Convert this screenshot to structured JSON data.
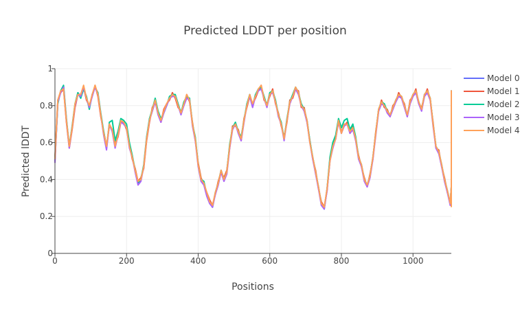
{
  "chart_data": {
    "type": "line",
    "title": "Predicted LDDT per position",
    "xlabel": "Positions",
    "ylabel": "Predicted lDDT",
    "xlim": [
      0,
      1107
    ],
    "ylim": [
      0,
      1
    ],
    "x_ticks": [
      0,
      200,
      400,
      600,
      800,
      1000
    ],
    "y_ticks": [
      0,
      0.2,
      0.4,
      0.6,
      0.8,
      1
    ],
    "x_tick_labels": [
      "0",
      "200",
      "400",
      "600",
      "800",
      "1000"
    ],
    "y_tick_labels": [
      "0",
      "0.2",
      "0.4",
      "0.6",
      "0.8",
      "1"
    ],
    "grid": true,
    "legend_position": "top-right",
    "x_step": 8,
    "series": [
      {
        "name": "Model 0",
        "color": "#636efa",
        "values": [
          0.5,
          0.82,
          0.88,
          0.9,
          0.72,
          0.58,
          0.68,
          0.8,
          0.87,
          0.85,
          0.9,
          0.84,
          0.79,
          0.86,
          0.9,
          0.86,
          0.75,
          0.65,
          0.57,
          0.7,
          0.66,
          0.58,
          0.64,
          0.72,
          0.7,
          0.68,
          0.58,
          0.52,
          0.45,
          0.38,
          0.4,
          0.47,
          0.62,
          0.72,
          0.78,
          0.83,
          0.76,
          0.72,
          0.77,
          0.8,
          0.84,
          0.86,
          0.85,
          0.8,
          0.76,
          0.81,
          0.85,
          0.83,
          0.7,
          0.62,
          0.48,
          0.4,
          0.38,
          0.32,
          0.28,
          0.25,
          0.33,
          0.38,
          0.45,
          0.4,
          0.44,
          0.58,
          0.68,
          0.7,
          0.66,
          0.62,
          0.72,
          0.8,
          0.86,
          0.8,
          0.85,
          0.89,
          0.9,
          0.84,
          0.8,
          0.86,
          0.88,
          0.82,
          0.75,
          0.7,
          0.62,
          0.72,
          0.82,
          0.85,
          0.9,
          0.87,
          0.8,
          0.78,
          0.72,
          0.6,
          0.52,
          0.44,
          0.36,
          0.27,
          0.24,
          0.35,
          0.5,
          0.58,
          0.62,
          0.72,
          0.65,
          0.7,
          0.7,
          0.66,
          0.68,
          0.62,
          0.52,
          0.48,
          0.4,
          0.37,
          0.42,
          0.52,
          0.65,
          0.78,
          0.82,
          0.8,
          0.77,
          0.75,
          0.79,
          0.83,
          0.86,
          0.85,
          0.8,
          0.75,
          0.82,
          0.86,
          0.88,
          0.82,
          0.78,
          0.86,
          0.88,
          0.84,
          0.7,
          0.58,
          0.55,
          0.48,
          0.4,
          0.34,
          0.27,
          0.36,
          0.45,
          0.58,
          0.6,
          0.68,
          0.66,
          0.62,
          0.6,
          0.55,
          0.5,
          0.44,
          0.4,
          0.36,
          0.38,
          0.45,
          0.58,
          0.72,
          0.8,
          0.84,
          0.78,
          0.72,
          0.82,
          0.86,
          0.8,
          0.75,
          0.84,
          0.88,
          0.86,
          0.8,
          0.84,
          0.87,
          0.83,
          0.72,
          0.64,
          0.58,
          0.5,
          0.42,
          0.38,
          0.27
        ]
      },
      {
        "name": "Model 1",
        "color": "#ef553b",
        "values": [
          0.52,
          0.83,
          0.87,
          0.89,
          0.71,
          0.57,
          0.67,
          0.79,
          0.86,
          0.86,
          0.9,
          0.83,
          0.8,
          0.85,
          0.91,
          0.85,
          0.74,
          0.66,
          0.58,
          0.69,
          0.67,
          0.59,
          0.63,
          0.71,
          0.71,
          0.67,
          0.59,
          0.51,
          0.46,
          0.39,
          0.41,
          0.46,
          0.61,
          0.71,
          0.79,
          0.82,
          0.77,
          0.71,
          0.78,
          0.81,
          0.83,
          0.87,
          0.84,
          0.79,
          0.77,
          0.8,
          0.86,
          0.82,
          0.71,
          0.61,
          0.49,
          0.41,
          0.37,
          0.33,
          0.29,
          0.26,
          0.32,
          0.39,
          0.44,
          0.41,
          0.45,
          0.57,
          0.69,
          0.69,
          0.67,
          0.61,
          0.73,
          0.79,
          0.85,
          0.81,
          0.84,
          0.88,
          0.91,
          0.83,
          0.81,
          0.85,
          0.89,
          0.81,
          0.76,
          0.69,
          0.63,
          0.71,
          0.83,
          0.84,
          0.89,
          0.88,
          0.79,
          0.79,
          0.71,
          0.61,
          0.51,
          0.45,
          0.35,
          0.28,
          0.25,
          0.34,
          0.51,
          0.57,
          0.63,
          0.71,
          0.66,
          0.69,
          0.71,
          0.65,
          0.69,
          0.61,
          0.53,
          0.47,
          0.41,
          0.36,
          0.43,
          0.51,
          0.66,
          0.77,
          0.83,
          0.79,
          0.78,
          0.74,
          0.8,
          0.82,
          0.87,
          0.84,
          0.81,
          0.74,
          0.83,
          0.85,
          0.89,
          0.81,
          0.79,
          0.85,
          0.89,
          0.83,
          0.71,
          0.57,
          0.56,
          0.47,
          0.41,
          0.33,
          0.28,
          0.35,
          0.46,
          0.57,
          0.61,
          0.67,
          0.67,
          0.61,
          0.61,
          0.54,
          0.51,
          0.43,
          0.41,
          0.35,
          0.39,
          0.44,
          0.59,
          0.71,
          0.81,
          0.83,
          0.79,
          0.71,
          0.83,
          0.85,
          0.81,
          0.74,
          0.85,
          0.87,
          0.87,
          0.79,
          0.85,
          0.86,
          0.84,
          0.71,
          0.65,
          0.57,
          0.51,
          0.41,
          0.39,
          0.26
        ]
      },
      {
        "name": "Model 2",
        "color": "#00cc96",
        "values": [
          0.51,
          0.81,
          0.88,
          0.91,
          0.73,
          0.58,
          0.69,
          0.81,
          0.87,
          0.84,
          0.89,
          0.85,
          0.78,
          0.86,
          0.9,
          0.87,
          0.76,
          0.66,
          0.57,
          0.71,
          0.72,
          0.61,
          0.66,
          0.73,
          0.72,
          0.7,
          0.6,
          0.53,
          0.45,
          0.38,
          0.4,
          0.48,
          0.63,
          0.73,
          0.78,
          0.84,
          0.77,
          0.73,
          0.76,
          0.8,
          0.85,
          0.86,
          0.86,
          0.81,
          0.76,
          0.82,
          0.85,
          0.84,
          0.7,
          0.63,
          0.48,
          0.4,
          0.39,
          0.32,
          0.28,
          0.25,
          0.33,
          0.38,
          0.45,
          0.4,
          0.44,
          0.59,
          0.68,
          0.71,
          0.66,
          0.63,
          0.72,
          0.81,
          0.86,
          0.8,
          0.86,
          0.89,
          0.9,
          0.85,
          0.8,
          0.87,
          0.88,
          0.83,
          0.75,
          0.71,
          0.62,
          0.73,
          0.82,
          0.86,
          0.9,
          0.87,
          0.81,
          0.78,
          0.72,
          0.61,
          0.52,
          0.44,
          0.36,
          0.27,
          0.24,
          0.35,
          0.52,
          0.6,
          0.64,
          0.73,
          0.68,
          0.72,
          0.73,
          0.67,
          0.7,
          0.63,
          0.52,
          0.48,
          0.4,
          0.37,
          0.42,
          0.52,
          0.65,
          0.78,
          0.82,
          0.81,
          0.77,
          0.75,
          0.79,
          0.83,
          0.86,
          0.85,
          0.8,
          0.75,
          0.82,
          0.86,
          0.88,
          0.82,
          0.78,
          0.86,
          0.88,
          0.84,
          0.7,
          0.58,
          0.55,
          0.48,
          0.4,
          0.34,
          0.27,
          0.36,
          0.45,
          0.59,
          0.62,
          0.7,
          0.67,
          0.64,
          0.61,
          0.55,
          0.5,
          0.44,
          0.4,
          0.36,
          0.38,
          0.45,
          0.58,
          0.72,
          0.8,
          0.84,
          0.78,
          0.72,
          0.82,
          0.86,
          0.8,
          0.75,
          0.84,
          0.88,
          0.86,
          0.8,
          0.84,
          0.87,
          0.83,
          0.72,
          0.64,
          0.58,
          0.5,
          0.42,
          0.38,
          0.27
        ]
      },
      {
        "name": "Model 3",
        "color": "#ab63fa",
        "values": [
          0.49,
          0.82,
          0.87,
          0.9,
          0.72,
          0.57,
          0.68,
          0.8,
          0.86,
          0.85,
          0.9,
          0.84,
          0.79,
          0.85,
          0.9,
          0.86,
          0.75,
          0.64,
          0.56,
          0.7,
          0.66,
          0.57,
          0.64,
          0.71,
          0.7,
          0.68,
          0.57,
          0.52,
          0.44,
          0.37,
          0.39,
          0.47,
          0.62,
          0.72,
          0.77,
          0.82,
          0.75,
          0.71,
          0.76,
          0.8,
          0.84,
          0.85,
          0.85,
          0.8,
          0.75,
          0.8,
          0.84,
          0.83,
          0.69,
          0.61,
          0.47,
          0.39,
          0.37,
          0.31,
          0.27,
          0.25,
          0.32,
          0.37,
          0.44,
          0.39,
          0.43,
          0.57,
          0.67,
          0.7,
          0.65,
          0.61,
          0.71,
          0.8,
          0.85,
          0.79,
          0.85,
          0.88,
          0.89,
          0.84,
          0.79,
          0.86,
          0.87,
          0.82,
          0.74,
          0.7,
          0.61,
          0.72,
          0.81,
          0.85,
          0.89,
          0.86,
          0.8,
          0.77,
          0.71,
          0.6,
          0.51,
          0.43,
          0.35,
          0.26,
          0.24,
          0.34,
          0.5,
          0.57,
          0.62,
          0.71,
          0.65,
          0.69,
          0.7,
          0.65,
          0.67,
          0.61,
          0.51,
          0.47,
          0.39,
          0.36,
          0.41,
          0.51,
          0.64,
          0.77,
          0.81,
          0.8,
          0.76,
          0.74,
          0.78,
          0.82,
          0.85,
          0.84,
          0.79,
          0.74,
          0.81,
          0.85,
          0.87,
          0.81,
          0.77,
          0.85,
          0.87,
          0.83,
          0.69,
          0.57,
          0.54,
          0.47,
          0.39,
          0.33,
          0.26,
          0.35,
          0.44,
          0.57,
          0.6,
          0.68,
          0.65,
          0.61,
          0.59,
          0.54,
          0.49,
          0.43,
          0.39,
          0.35,
          0.37,
          0.44,
          0.57,
          0.71,
          0.79,
          0.83,
          0.77,
          0.71,
          0.81,
          0.85,
          0.79,
          0.74,
          0.83,
          0.87,
          0.85,
          0.79,
          0.83,
          0.86,
          0.82,
          0.71,
          0.63,
          0.57,
          0.49,
          0.41,
          0.37,
          0.26
        ]
      },
      {
        "name": "Model 4",
        "color": "#ffa15a",
        "values": [
          0.51,
          0.83,
          0.88,
          0.89,
          0.72,
          0.58,
          0.68,
          0.81,
          0.86,
          0.86,
          0.91,
          0.84,
          0.8,
          0.86,
          0.91,
          0.86,
          0.75,
          0.65,
          0.58,
          0.7,
          0.67,
          0.58,
          0.64,
          0.72,
          0.71,
          0.68,
          0.58,
          0.52,
          0.45,
          0.39,
          0.4,
          0.47,
          0.62,
          0.72,
          0.78,
          0.83,
          0.76,
          0.72,
          0.77,
          0.81,
          0.84,
          0.86,
          0.85,
          0.8,
          0.76,
          0.81,
          0.86,
          0.83,
          0.7,
          0.62,
          0.48,
          0.4,
          0.38,
          0.33,
          0.28,
          0.26,
          0.33,
          0.38,
          0.45,
          0.4,
          0.44,
          0.58,
          0.68,
          0.7,
          0.66,
          0.62,
          0.72,
          0.8,
          0.86,
          0.81,
          0.85,
          0.89,
          0.91,
          0.84,
          0.8,
          0.86,
          0.88,
          0.82,
          0.75,
          0.7,
          0.62,
          0.72,
          0.82,
          0.85,
          0.9,
          0.87,
          0.8,
          0.78,
          0.72,
          0.6,
          0.52,
          0.44,
          0.36,
          0.27,
          0.25,
          0.35,
          0.5,
          0.58,
          0.62,
          0.72,
          0.65,
          0.7,
          0.7,
          0.66,
          0.68,
          0.62,
          0.52,
          0.48,
          0.4,
          0.37,
          0.42,
          0.52,
          0.65,
          0.78,
          0.82,
          0.8,
          0.77,
          0.75,
          0.79,
          0.83,
          0.86,
          0.85,
          0.8,
          0.75,
          0.82,
          0.86,
          0.88,
          0.82,
          0.78,
          0.86,
          0.88,
          0.84,
          0.7,
          0.58,
          0.55,
          0.48,
          0.4,
          0.34,
          0.27,
          0.36,
          0.45,
          0.58,
          0.6,
          0.68,
          0.66,
          0.62,
          0.6,
          0.55,
          0.5,
          0.44,
          0.4,
          0.36,
          0.38,
          0.45,
          0.58,
          0.72,
          0.8,
          0.84,
          0.78,
          0.72,
          0.82,
          0.86,
          0.8,
          0.75,
          0.84,
          0.88,
          0.86,
          0.8,
          0.84,
          0.87,
          0.83,
          0.72,
          0.64,
          0.58,
          0.5,
          0.42,
          0.38,
          0.25
        ]
      }
    ]
  }
}
